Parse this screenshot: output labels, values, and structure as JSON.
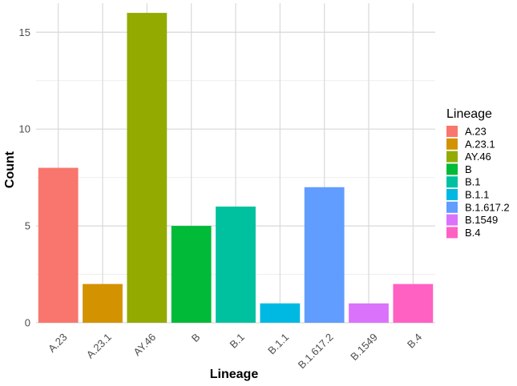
{
  "chart_data": {
    "type": "bar",
    "xlabel": "Lineage",
    "ylabel": "Count",
    "ylim": [
      0,
      16.5
    ],
    "yticks": [
      0,
      5,
      10,
      15
    ],
    "grid": true,
    "legend_title": "Lineage",
    "legend_position": "right",
    "categories": [
      "A.23",
      "A.23.1",
      "AY.46",
      "B",
      "B.1",
      "B.1.1",
      "B.1.617.2",
      "B.1549",
      "B.4"
    ],
    "values": [
      8,
      2,
      16,
      5,
      6,
      1,
      7,
      1,
      2
    ],
    "colors": [
      "#F8766D",
      "#D39200",
      "#93AA00",
      "#00BA38",
      "#00C19F",
      "#00B9E3",
      "#619CFF",
      "#DB72FB",
      "#FF61C3"
    ]
  }
}
